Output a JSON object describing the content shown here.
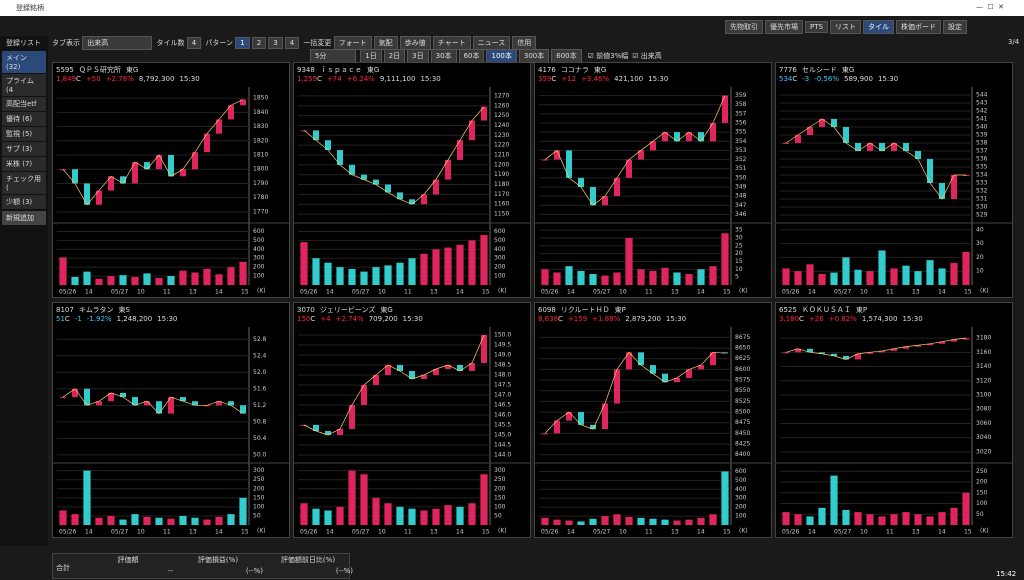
{
  "window": {
    "title": "登録銘柄",
    "clock": "15:42"
  },
  "top_buttons": [
    "先物取引",
    "優先市場",
    "PTS",
    "リスト",
    "タイル",
    "株価ボード",
    "設定"
  ],
  "page_indicator": "3/4",
  "toolbar": {
    "tab_label": "タブ表示",
    "tab_value": "出来高",
    "tile_label": "タイル数",
    "tile_value": "4",
    "pattern_label": "パターン",
    "patterns": [
      "1",
      "2",
      "3",
      "4"
    ],
    "bulk": "一括変更",
    "views": [
      "フォート",
      "気配",
      "歩み値",
      "チャート",
      "ニュース",
      "信用"
    ]
  },
  "timeframes": {
    "interval": "5分",
    "ranges": [
      "1日",
      "2日",
      "3日",
      "30本",
      "60本",
      "100本",
      "300本",
      "600本"
    ],
    "checks": [
      "前値3%幅",
      "出来高"
    ]
  },
  "sidebar": {
    "title": "登録リスト",
    "items": [
      "メイン (32)",
      "プライム (4",
      "高配当etf",
      "優待 (6)",
      "監視 (5)",
      "サブ (3)",
      "米株 (7)",
      "チェック用 (",
      "少額 (3)"
    ],
    "add": "新規追加"
  },
  "summary": {
    "total": "合計",
    "headers": [
      "評価額",
      "評価損益(%)",
      "評価額前日比(%)"
    ],
    "values": [
      "--",
      "(--%)",
      "(--%)"
    ]
  },
  "vol_unit": "(K)",
  "panels": [
    {
      "code": "5595",
      "name": "ＱＰＳ研究所",
      "market": "東G",
      "price": "1,849",
      "flag": "C",
      "change": "+50",
      "pct": "+2.78%",
      "volume": "8,792,300",
      "time": "15:30",
      "ylim": [
        1765,
        1855
      ],
      "yticks": [
        1850,
        1840,
        1830,
        1820,
        1810,
        1800,
        1790,
        1780,
        1770
      ],
      "vlim": [
        0,
        650
      ],
      "vticks": [
        600,
        500,
        400,
        300,
        200,
        100
      ],
      "dates": [
        "05/26",
        "14",
        "05/27",
        "10",
        "11",
        "13",
        "14",
        "15"
      ],
      "close": [
        1800,
        1790,
        1775,
        1785,
        1795,
        1790,
        1805,
        1800,
        1810,
        1795,
        1800,
        1812,
        1825,
        1835,
        1845,
        1849
      ],
      "vol": [
        310,
        90,
        150,
        70,
        100,
        110,
        90,
        130,
        80,
        100,
        160,
        140,
        180,
        120,
        200,
        260
      ]
    },
    {
      "code": "9348",
      "name": "ｉｓｐａｃｅ",
      "market": "東G",
      "price": "1,259",
      "flag": "C",
      "change": "+74",
      "pct": "+6.24%",
      "volume": "9,111,100",
      "time": "15:30",
      "ylim": [
        1145,
        1275
      ],
      "yticks": [
        1270,
        1260,
        1250,
        1240,
        1230,
        1220,
        1210,
        1200,
        1190,
        1180,
        1170,
        1160,
        1150
      ],
      "vlim": [
        0,
        650
      ],
      "vticks": [
        600,
        500,
        400,
        300,
        200,
        100
      ],
      "dates": [
        "05/26",
        "14",
        "05/27",
        "10",
        "11",
        "13",
        "14",
        "15"
      ],
      "close": [
        1235,
        1225,
        1215,
        1200,
        1190,
        1185,
        1180,
        1172,
        1165,
        1160,
        1170,
        1185,
        1205,
        1225,
        1245,
        1259
      ],
      "vol": [
        480,
        300,
        250,
        200,
        180,
        150,
        200,
        220,
        250,
        300,
        350,
        400,
        420,
        450,
        500,
        560
      ]
    },
    {
      "code": "4176",
      "name": "ココナラ",
      "market": "東G",
      "price": "359",
      "flag": "C",
      "change": "+12",
      "pct": "+3.46%",
      "volume": "421,100",
      "time": "15:30",
      "ylim": [
        345.5,
        359.5
      ],
      "yticks": [
        359,
        358,
        357,
        356,
        355,
        354,
        353,
        352,
        351,
        350,
        349,
        348,
        347,
        346
      ],
      "vlim": [
        0,
        37
      ],
      "vticks": [
        35,
        30,
        25,
        20,
        15,
        10,
        5
      ],
      "dates": [
        "05/26",
        "14",
        "05/27",
        "10",
        "11",
        "13",
        "14",
        "15"
      ],
      "close": [
        352,
        353,
        350,
        349,
        347,
        348,
        350,
        352,
        353,
        354,
        355,
        354,
        355,
        354,
        356,
        359
      ],
      "vol": [
        10,
        8,
        12,
        9,
        7,
        6,
        8,
        30,
        10,
        9,
        11,
        8,
        7,
        10,
        12,
        33
      ]
    },
    {
      "code": "7776",
      "name": "セルシード",
      "market": "東G",
      "price": "534",
      "flag": "C",
      "change": "-3",
      "pct": "-0.56%",
      "volume": "589,900",
      "time": "15:30",
      "ylim": [
        528.5,
        544.5
      ],
      "yticks": [
        544,
        543,
        542,
        541,
        540,
        539,
        538,
        537,
        536,
        535,
        534,
        533,
        532,
        531,
        530,
        529
      ],
      "vlim": [
        0,
        42
      ],
      "vticks": [
        40,
        30,
        20,
        10
      ],
      "dates": [
        "05/26",
        "14",
        "05/27",
        "10",
        "11",
        "13",
        "14",
        "15"
      ],
      "close": [
        538,
        539,
        540,
        541,
        540,
        538,
        537,
        538,
        537,
        538,
        537,
        536,
        533,
        531,
        534,
        534
      ],
      "vol": [
        12,
        10,
        15,
        8,
        9,
        20,
        11,
        10,
        25,
        12,
        14,
        10,
        18,
        12,
        16,
        24
      ]
    },
    {
      "code": "8107",
      "name": "キムラタン",
      "market": "東S",
      "price": "51",
      "flag": "C",
      "change": "-1",
      "pct": "-1.92%",
      "volume": "1,248,200",
      "time": "15:30",
      "ylim": [
        49.9,
        53
      ],
      "yticks": [
        52.8,
        52.4,
        {
          "value": 52,
          "label": "52.0"
        },
        51.6,
        51.2,
        50.8,
        50.4,
        {
          "value": 50,
          "label": "50.0"
        }
      ],
      "vlim": [
        0,
        320
      ],
      "vticks": [
        300,
        250,
        200,
        150,
        100,
        50
      ],
      "dates": [
        "05/26",
        "14",
        "05/27",
        "10",
        "11",
        "13",
        "14",
        "15"
      ],
      "close": [
        51.4,
        51.6,
        51.2,
        51.3,
        51.5,
        51.4,
        51.2,
        51.3,
        51.0,
        51.4,
        51.3,
        51.2,
        51.2,
        51.3,
        51.2,
        51.0
      ],
      "vol": [
        80,
        60,
        300,
        40,
        50,
        30,
        60,
        45,
        40,
        35,
        50,
        40,
        30,
        45,
        60,
        150
      ]
    },
    {
      "code": "3070",
      "name": "ジェリービーンズ",
      "market": "東G",
      "price": "150",
      "flag": "C",
      "change": "+4",
      "pct": "+2.74%",
      "volume": "709,200",
      "time": "15:30",
      "ylim": [
        143.8,
        150.2
      ],
      "yticks": [
        {
          "value": 150,
          "label": "150.0"
        },
        149.5,
        {
          "value": 149,
          "label": "149.0"
        },
        148.5,
        {
          "value": 148,
          "label": "148.0"
        },
        147.5,
        {
          "value": 147,
          "label": "147.0"
        },
        146.5,
        {
          "value": 146,
          "label": "146.0"
        },
        145.5,
        {
          "value": 145,
          "label": "145.0"
        },
        144.5,
        {
          "value": 144,
          "label": "144.0"
        }
      ],
      "vlim": [
        0,
        320
      ],
      "vticks": [
        300,
        250,
        200,
        150,
        100,
        50
      ],
      "dates": [
        "05/26",
        "14",
        "05/27",
        "10",
        "11",
        "13",
        "14",
        "15"
      ],
      "close": [
        145.5,
        145.2,
        145.0,
        145.3,
        146.5,
        147.5,
        148.0,
        148.5,
        148.2,
        147.8,
        148.0,
        148.3,
        148.5,
        148.2,
        148.6,
        150.0
      ],
      "vol": [
        120,
        90,
        80,
        100,
        300,
        280,
        150,
        120,
        100,
        90,
        80,
        90,
        110,
        100,
        120,
        280
      ]
    },
    {
      "code": "6098",
      "name": "リクルートＨＤ",
      "market": "東P",
      "price": "8,638",
      "flag": "C",
      "change": "+159",
      "pct": "+1.88%",
      "volume": "2,879,200",
      "time": "15:30",
      "ylim": [
        8390,
        8690
      ],
      "yticks": [
        8675,
        8650,
        8625,
        8600,
        8575,
        8550,
        8525,
        8500,
        8475,
        8450,
        8425,
        8400
      ],
      "vlim": [
        0,
        650
      ],
      "vticks": [
        600,
        500,
        400,
        300,
        200,
        100
      ],
      "dates": [
        "05/26",
        "14",
        "05/27",
        "10",
        "11",
        "13",
        "14",
        "15"
      ],
      "close": [
        8450,
        8480,
        8500,
        8470,
        8460,
        8520,
        8600,
        8640,
        8610,
        8590,
        8570,
        8580,
        8600,
        8610,
        8640,
        8638
      ],
      "vol": [
        80,
        60,
        50,
        40,
        70,
        100,
        120,
        90,
        80,
        70,
        60,
        50,
        60,
        80,
        120,
        600
      ]
    },
    {
      "code": "6525",
      "name": "ＫＯＫＵＳＡＩ",
      "market": "東P",
      "price": "3,180",
      "flag": "C",
      "change": "+26",
      "pct": "+0.82%",
      "volume": "1,574,300",
      "time": "15:30",
      "ylim": [
        3010,
        3190
      ],
      "yticks": [
        3180,
        3160,
        3140,
        3120,
        3100,
        3080,
        3060,
        3040,
        3020
      ],
      "vlim": [
        0,
        270
      ],
      "vticks": [
        250,
        200,
        150,
        100,
        50
      ],
      "dates": [
        "05/26",
        "14",
        "05/27",
        "10",
        "11",
        "13",
        "14",
        "15"
      ],
      "close": [
        3160,
        3165,
        3160,
        3158,
        3155,
        3150,
        3158,
        3160,
        3162,
        3165,
        3168,
        3170,
        3172,
        3175,
        3178,
        3180
      ],
      "vol": [
        60,
        50,
        40,
        80,
        230,
        70,
        60,
        50,
        40,
        50,
        60,
        50,
        40,
        60,
        80,
        150
      ]
    }
  ]
}
